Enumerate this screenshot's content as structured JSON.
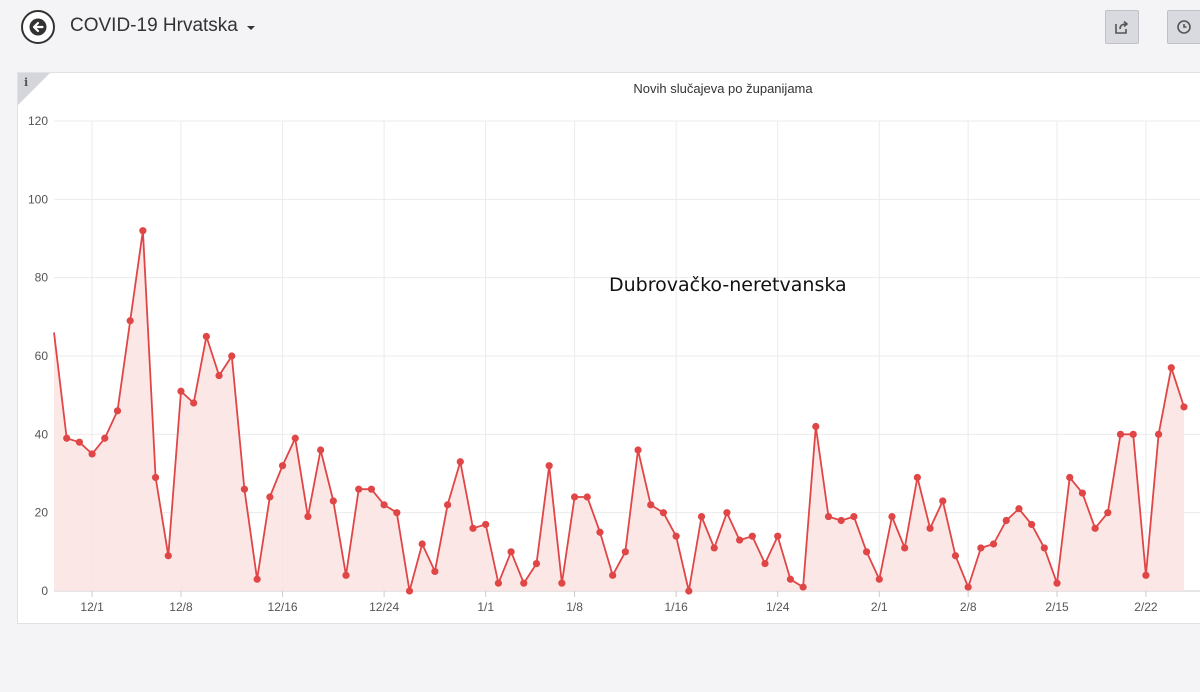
{
  "header": {
    "title": "COVID-19 Hrvatska",
    "back_icon": "arrow-left-icon",
    "share_icon": "share-icon",
    "history_icon": "clock-icon"
  },
  "info_label": "i",
  "overlay_label": "Dubrovačko-neretvanska",
  "colors": {
    "series": "#e04646",
    "fill": "#fbe3e3",
    "grid": "#ebebeb"
  },
  "chart_data": {
    "type": "area",
    "title": "Novih slučajeva po županijama",
    "xlabel": "",
    "ylabel": "",
    "ylim": [
      0,
      120
    ],
    "yticks": [
      0,
      20,
      40,
      60,
      80,
      100,
      120
    ],
    "x_start": "11/28",
    "x_end": "2/25",
    "xticks": [
      {
        "label": "12/1",
        "index": 3
      },
      {
        "label": "12/8",
        "index": 10
      },
      {
        "label": "12/16",
        "index": 18
      },
      {
        "label": "12/24",
        "index": 26
      },
      {
        "label": "1/1",
        "index": 34
      },
      {
        "label": "1/8",
        "index": 41
      },
      {
        "label": "1/16",
        "index": 49
      },
      {
        "label": "1/24",
        "index": 57
      },
      {
        "label": "2/1",
        "index": 65
      },
      {
        "label": "2/8",
        "index": 72
      },
      {
        "label": "2/15",
        "index": 79
      },
      {
        "label": "2/22",
        "index": 86
      }
    ],
    "series": [
      {
        "name": "",
        "values": [
          66,
          39,
          38,
          35,
          39,
          46,
          69,
          92,
          29,
          9,
          51,
          48,
          65,
          55,
          60,
          26,
          3,
          24,
          32,
          39,
          19,
          36,
          23,
          4,
          26,
          26,
          22,
          20,
          0,
          12,
          5,
          22,
          33,
          16,
          17,
          2,
          10,
          2,
          7,
          32,
          2,
          24,
          24,
          15,
          4,
          10,
          36,
          22,
          20,
          14,
          0,
          19,
          11,
          20,
          13,
          14,
          7,
          14,
          3,
          1,
          42,
          19,
          18,
          19,
          10,
          3,
          19,
          11,
          29,
          16,
          23,
          9,
          1,
          11,
          12,
          18,
          21,
          17,
          11,
          2,
          29,
          25,
          16,
          20,
          40,
          40,
          4,
          40,
          57,
          47
        ]
      }
    ]
  }
}
